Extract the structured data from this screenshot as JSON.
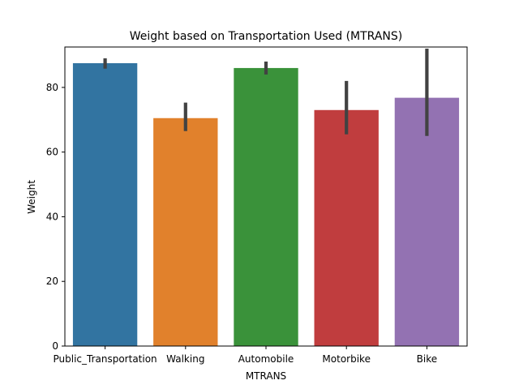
{
  "chart_data": {
    "type": "bar",
    "title": "Weight based on Transportation Used (MTRANS)",
    "xlabel": "MTRANS",
    "ylabel": "Weight",
    "categories": [
      "Public_Transportation",
      "Walking",
      "Automobile",
      "Motorbike",
      "Bike"
    ],
    "values": [
      87.5,
      70.5,
      86.0,
      73.0,
      76.8
    ],
    "error_bars": [
      {
        "low": 85.8,
        "high": 89.0
      },
      {
        "low": 66.5,
        "high": 75.3
      },
      {
        "low": 84.0,
        "high": 88.0
      },
      {
        "low": 65.5,
        "high": 82.0
      },
      {
        "low": 65.0,
        "high": 92.0
      }
    ],
    "colors": [
      "#3274a1",
      "#e1812c",
      "#3a923a",
      "#c03d3e",
      "#9372b2"
    ],
    "error_color": "#424242",
    "ylim": [
      0,
      92.5
    ],
    "yticks": [
      0,
      20,
      40,
      60,
      80
    ],
    "grid": false,
    "legend": false
  }
}
